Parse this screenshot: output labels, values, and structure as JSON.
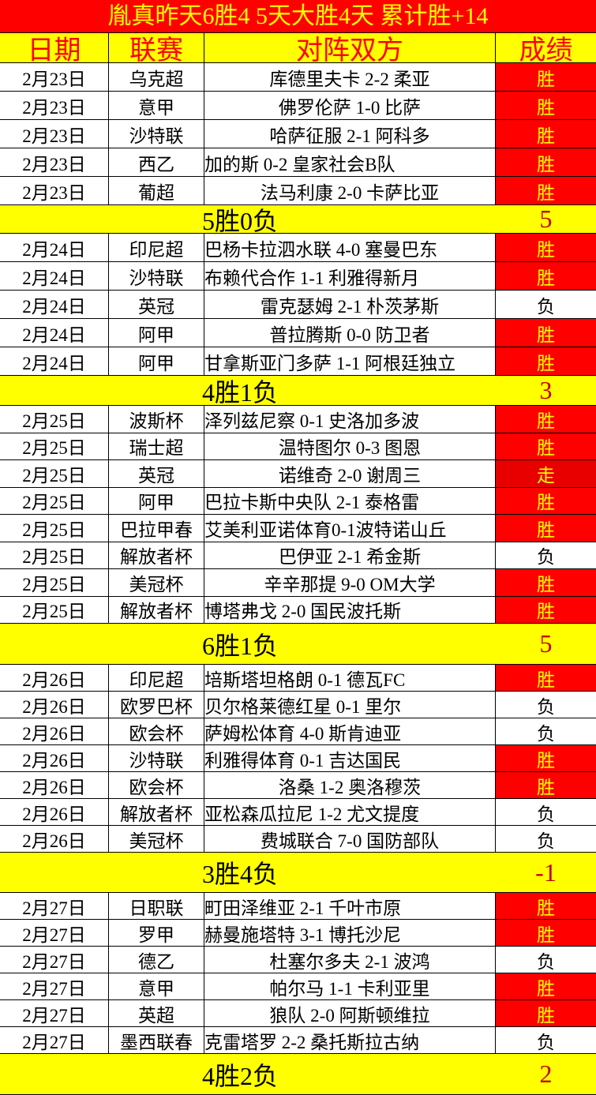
{
  "title": "胤真昨天6胜4  5天大胜4天  累计胜+14",
  "headers": [
    "日期",
    "联赛",
    "对阵双方",
    "成绩"
  ],
  "colors": {
    "win_bg": "#ff0000",
    "win_text": "#ffff00",
    "header_bg": "#ffff00",
    "header_text": "#ff0000",
    "summary_bg": "#ffff00"
  },
  "days": [
    {
      "matches": [
        {
          "date": "2月23日",
          "league": "乌克超",
          "match": "库德里夫卡 2-2 柔亚",
          "result": "胜"
        },
        {
          "date": "2月23日",
          "league": "意甲",
          "match": "佛罗伦萨 1-0 比萨",
          "result": "胜"
        },
        {
          "date": "2月23日",
          "league": "沙特联",
          "match": "哈萨征服 2-1 阿科多",
          "result": "胜"
        },
        {
          "date": "2月23日",
          "league": "西乙",
          "match": "加的斯 0-2 皇家社会B队",
          "result": "胜"
        },
        {
          "date": "2月23日",
          "league": "葡超",
          "match": "法马利康 2-0 卡萨比亚",
          "result": "胜"
        }
      ],
      "summary": "5胜0负",
      "score": "5"
    },
    {
      "matches": [
        {
          "date": "2月24日",
          "league": "印尼超",
          "match": "巴杨卡拉泗水联 4-0 塞曼巴东",
          "result": "胜"
        },
        {
          "date": "2月24日",
          "league": "沙特联",
          "match": "布赖代合作 1-1 利雅得新月",
          "result": "胜"
        },
        {
          "date": "2月24日",
          "league": "英冠",
          "match": "雷克瑟姆 2-1 朴茨茅斯",
          "result": "负"
        },
        {
          "date": "2月24日",
          "league": "阿甲",
          "match": "普拉腾斯 0-0 防卫者",
          "result": "胜"
        },
        {
          "date": "2月24日",
          "league": "阿甲",
          "match": "甘拿斯亚门多萨 1-1 阿根廷独立",
          "result": "胜"
        }
      ],
      "summary": "4胜1负",
      "score": "3"
    },
    {
      "matches": [
        {
          "date": "2月25日",
          "league": "波斯杯",
          "match": "泽列兹尼察 0-1 史洛加多波",
          "result": "胜"
        },
        {
          "date": "2月25日",
          "league": "瑞士超",
          "match": "温特图尔 0-3 图恩",
          "result": "胜"
        },
        {
          "date": "2月25日",
          "league": "英冠",
          "match": "诺维奇 2-0 谢周三",
          "result": "走"
        },
        {
          "date": "2月25日",
          "league": "阿甲",
          "match": "巴拉卡斯中央队 2-1 泰格雷",
          "result": "胜"
        },
        {
          "date": "2月25日",
          "league": "巴拉甲春",
          "match": "艾美利亚诺体育0-1波特诺山丘",
          "result": "胜"
        },
        {
          "date": "2月25日",
          "league": "解放者杯",
          "match": "巴伊亚 2-1 希金斯",
          "result": "负"
        },
        {
          "date": "2月25日",
          "league": "美冠杯",
          "match": "辛辛那提 9-0 OM大学",
          "result": "胜"
        },
        {
          "date": "2月25日",
          "league": "解放者杯",
          "match": "博塔弗戈 2-0 国民波托斯",
          "result": "胜"
        }
      ],
      "summary": "6胜1负",
      "score": "5"
    },
    {
      "matches": [
        {
          "date": "2月26日",
          "league": "印尼超",
          "match": "培斯塔坦格朗 0-1 德瓦FC",
          "result": "胜"
        },
        {
          "date": "2月26日",
          "league": "欧罗巴杯",
          "match": "贝尔格莱德红星 0-1 里尔",
          "result": "负"
        },
        {
          "date": "2月26日",
          "league": "欧会杯",
          "match": "萨姆松体育 4-0 斯肯迪亚",
          "result": "负"
        },
        {
          "date": "2月26日",
          "league": "沙特联",
          "match": "利雅得体育 0-1 吉达国民",
          "result": "胜"
        },
        {
          "date": "2月26日",
          "league": "欧会杯",
          "match": "洛桑 1-2 奥洛穆茨",
          "result": "胜"
        },
        {
          "date": "2月26日",
          "league": "解放者杯",
          "match": "亚松森瓜拉尼 1-2 尤文提度",
          "result": "负"
        },
        {
          "date": "2月26日",
          "league": "美冠杯",
          "match": "费城联合 7-0 国防部队",
          "result": "负"
        }
      ],
      "summary": "3胜4负",
      "score": "-1"
    },
    {
      "matches": [
        {
          "date": "2月27日",
          "league": "日职联",
          "match": "町田泽维亚 2-1 千叶市原",
          "result": "胜"
        },
        {
          "date": "2月27日",
          "league": "罗甲",
          "match": "赫曼施塔特 3-1 博托沙尼",
          "result": "胜"
        },
        {
          "date": "2月27日",
          "league": "德乙",
          "match": "杜塞尔多夫 2-1 波鸿",
          "result": "负"
        },
        {
          "date": "2月27日",
          "league": "意甲",
          "match": "帕尔马 1-1 卡利亚里",
          "result": "胜"
        },
        {
          "date": "2月27日",
          "league": "英超",
          "match": "狼队 2-0 阿斯顿维拉",
          "result": "胜"
        },
        {
          "date": "2月27日",
          "league": "墨西联春",
          "match": "克雷塔罗 2-2 桑托斯拉古纳",
          "result": "负"
        }
      ],
      "summary": "4胜2负",
      "score": "2"
    }
  ]
}
